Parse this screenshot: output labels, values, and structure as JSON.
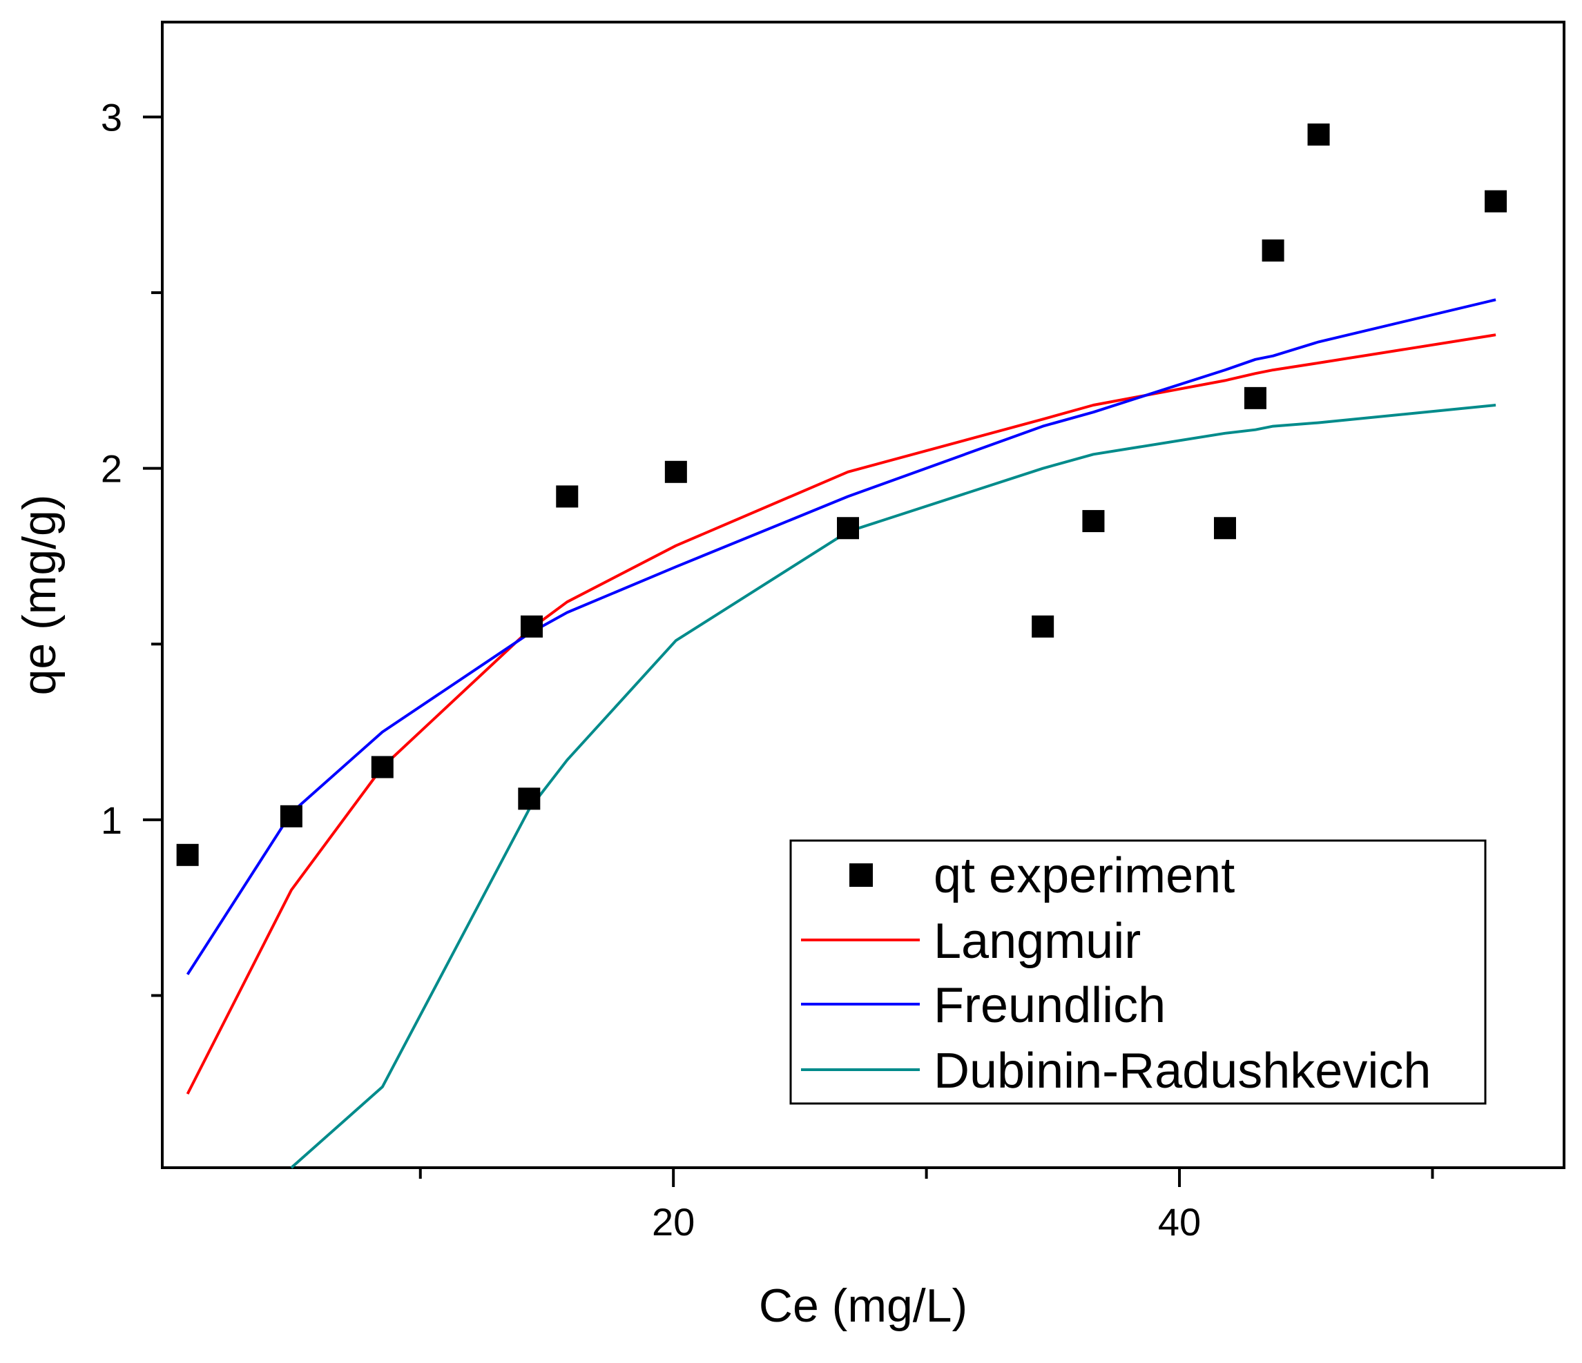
{
  "chart_data": {
    "type": "scatter",
    "title": "",
    "xlabel": "Ce (mg/L)",
    "ylabel": "qe (mg/g)",
    "xlim": [
      -0.2,
      55.2
    ],
    "ylim": [
      0.01,
      3.27
    ],
    "x_major_ticks": [
      20,
      40
    ],
    "x_minor_ticks": [
      10,
      30,
      50
    ],
    "y_major_ticks": [
      1,
      2,
      3
    ],
    "y_minor_ticks": [
      0.5,
      1.5,
      2.5
    ],
    "grid": false,
    "legend_position": "bottom-right",
    "colors": {
      "points": "#000000",
      "langmuir": "#ff0000",
      "freundlich": "#0000ff",
      "dubinin": "#008b8b"
    },
    "scatter": {
      "name": "qt experiment",
      "x": [
        0.8,
        4.9,
        8.5,
        14.3,
        14.4,
        15.8,
        20.1,
        26.9,
        34.6,
        36.6,
        41.8,
        43.0,
        43.7,
        45.5,
        52.5
      ],
      "y": [
        0.9,
        1.01,
        1.15,
        1.06,
        1.55,
        1.92,
        1.99,
        1.83,
        1.55,
        1.85,
        1.83,
        2.2,
        2.62,
        2.95,
        2.76
      ]
    },
    "series": [
      {
        "name": "Langmuir",
        "x": [
          0.8,
          4.9,
          8.5,
          14.3,
          15.8,
          20.1,
          26.9,
          34.6,
          36.6,
          41.8,
          43.0,
          43.7,
          45.5,
          52.5
        ],
        "y": [
          0.22,
          0.8,
          1.15,
          1.54,
          1.62,
          1.78,
          1.99,
          2.14,
          2.18,
          2.25,
          2.27,
          2.28,
          2.3,
          2.38
        ]
      },
      {
        "name": "Freundlich",
        "x": [
          0.8,
          4.9,
          8.5,
          14.3,
          15.8,
          20.1,
          26.9,
          34.6,
          36.6,
          41.8,
          43.0,
          43.7,
          45.5,
          52.5
        ],
        "y": [
          0.56,
          1.02,
          1.25,
          1.53,
          1.59,
          1.72,
          1.92,
          2.12,
          2.16,
          2.28,
          2.31,
          2.32,
          2.36,
          2.48
        ]
      },
      {
        "name": "Dubinin-Radushkevich",
        "x": [
          4.9,
          8.5,
          14.3,
          15.8,
          20.1,
          26.9,
          34.6,
          36.6,
          41.8,
          43.0,
          43.7,
          45.5,
          52.5
        ],
        "y": [
          0.01,
          0.24,
          1.03,
          1.17,
          1.51,
          1.82,
          2.0,
          2.04,
          2.1,
          2.11,
          2.12,
          2.13,
          2.18
        ]
      }
    ]
  }
}
